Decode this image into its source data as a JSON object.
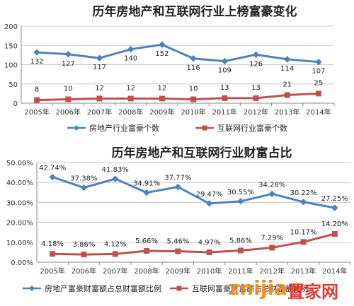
{
  "chart_data": [
    {
      "type": "line",
      "title": "历年房地产和互联网行业上榜富豪变化",
      "categories": [
        "2005年",
        "2006年",
        "2007年",
        "2008年",
        "2009年",
        "2010年",
        "2011年",
        "2012年",
        "2013年",
        "2014年"
      ],
      "series": [
        {
          "name": "房地产行业富豪个数",
          "values": [
            132,
            127,
            117,
            140,
            152,
            116,
            109,
            126,
            114,
            107
          ],
          "color": "#4f81bd",
          "marker": "diamond"
        },
        {
          "name": "互联网行业富豪个数",
          "values": [
            8,
            10,
            12,
            12,
            12,
            10,
            13,
            13,
            21,
            25
          ],
          "color": "#c0504d",
          "marker": "square"
        }
      ],
      "ylim": [
        0,
        200
      ],
      "yticks": [
        "0",
        "50",
        "100",
        "150",
        "200"
      ],
      "grid": true,
      "legend": "bottom"
    },
    {
      "type": "line",
      "title": "历年房地产和互联网行业财富占比",
      "categories": [
        "2005年",
        "2006年",
        "2007年",
        "2008年",
        "2009年",
        "2010年",
        "2011年",
        "2012年",
        "2013年",
        "2014年"
      ],
      "series": [
        {
          "name": "房地产富豪财富额占总财富额比例",
          "values": [
            42.74,
            37.38,
            41.83,
            34.91,
            37.77,
            29.47,
            30.55,
            34.28,
            30.22,
            27.25
          ],
          "labels": [
            "42.74%",
            "37.38%",
            "41.83%",
            "34.91%",
            "37.77%",
            "29.47%",
            "30.55%",
            "34.28%",
            "30.22%",
            "27.25%"
          ],
          "color": "#4f81bd",
          "marker": "diamond"
        },
        {
          "name": "互联网富豪财富额占总财富额比例",
          "values": [
            4.18,
            3.86,
            4.12,
            5.66,
            5.46,
            4.97,
            5.86,
            7.29,
            10.17,
            14.2
          ],
          "labels": [
            "4.18%",
            "3.86%",
            "4.12%",
            "5.66%",
            "5.46%",
            "4.97%",
            "5.86%",
            "7.29%",
            "10.17%",
            "14.20%"
          ],
          "color": "#c0504d",
          "marker": "square"
        }
      ],
      "ylim": [
        0,
        50
      ],
      "yticks": [
        "0.00%",
        "10.00%",
        "20.00%",
        "30.00%",
        "40.00%",
        "50.00%"
      ],
      "grid": true,
      "legend": "bottom"
    }
  ],
  "watermark": {
    "word": "znijia",
    "cn": "置家网"
  }
}
